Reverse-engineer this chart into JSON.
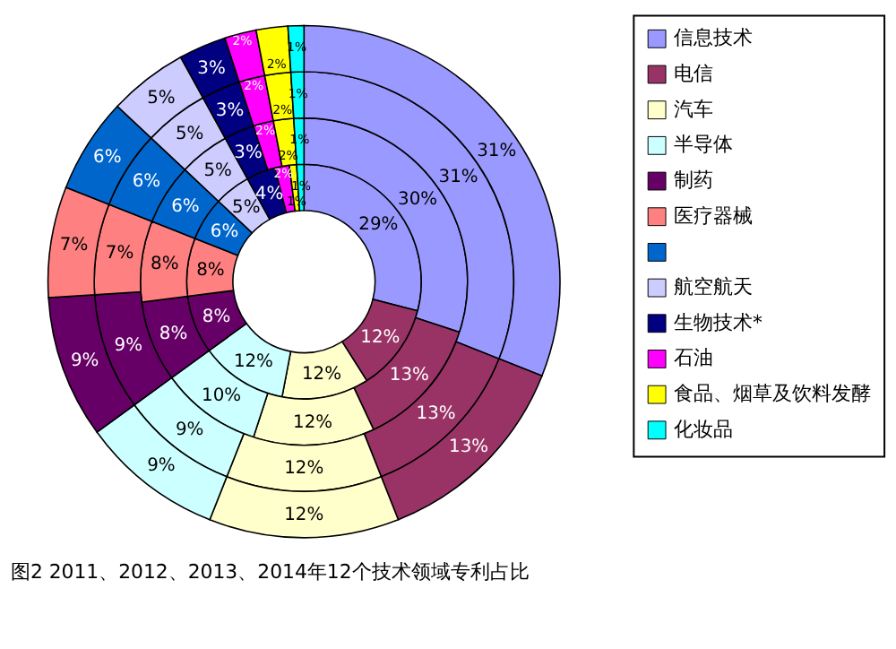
{
  "chart_data": {
    "type": "donut",
    "categories": [
      "信息技术",
      "电信",
      "汽车",
      "半导体",
      "制药",
      "医疗器械",
      null,
      "航空航天",
      "生物技术*",
      "石油",
      "食品、烟草及饮料发酵",
      "化妆品"
    ],
    "colors": [
      "#9999ff",
      "#993366",
      "#ffffcc",
      "#ccffff",
      "#660066",
      "#ff8080",
      "#0066cc",
      "#ccccff",
      "#000080",
      "#ff00ff",
      "#ffff00",
      "#00ffff"
    ],
    "series": [
      {
        "values": [
          29,
          12,
          12,
          12,
          8,
          8,
          6,
          5,
          4,
          2,
          1,
          1
        ],
        "value_labels": [
          "29%",
          "12%",
          "12%",
          "12%",
          "8%",
          "8%",
          "6%",
          "5%",
          "4%",
          "2%",
          "1%",
          "1%"
        ]
      },
      {
        "values": [
          30,
          13,
          12,
          10,
          8,
          8,
          6,
          5,
          3,
          2,
          2,
          1
        ],
        "value_labels": [
          "30%",
          "13%",
          "12%",
          "10%",
          "8%",
          "8%",
          "6%",
          "5%",
          "3%",
          "2%",
          "2%",
          "1%"
        ]
      },
      {
        "values": [
          31,
          13,
          12,
          9,
          9,
          7,
          6,
          5,
          3,
          2,
          2,
          1
        ],
        "value_labels": [
          "31%",
          "13%",
          "12%",
          "9%",
          "9%",
          "7%",
          "6%",
          "5%",
          "3%",
          "2%",
          "2%",
          "1%"
        ]
      },
      {
        "values": [
          31,
          13,
          12,
          9,
          9,
          7,
          6,
          5,
          3,
          2,
          2,
          1
        ],
        "value_labels": [
          "31%",
          "13%",
          "12%",
          "9%",
          "9%",
          "7%",
          "6%",
          "5%",
          "3%",
          "2%",
          "2%",
          "1%"
        ]
      }
    ],
    "legend": "right",
    "annotations": [
      "图2 2011、2012、2013、2014年12个技术领域专利占比"
    ]
  }
}
